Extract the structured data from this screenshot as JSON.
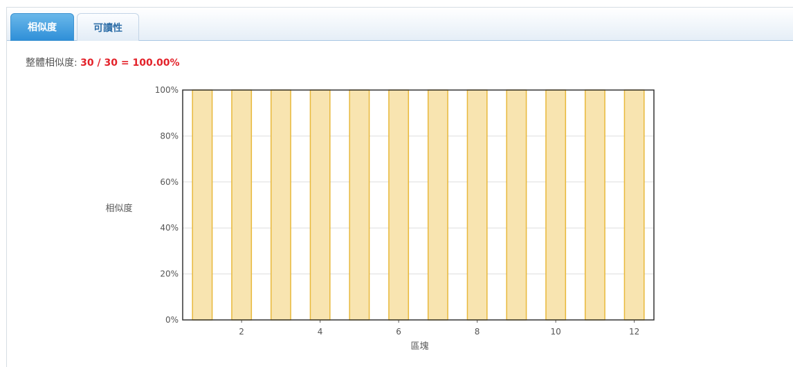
{
  "tabs": [
    {
      "label": "相似度",
      "active": true
    },
    {
      "label": "可讀性",
      "active": false
    }
  ],
  "summary": {
    "label": "整體相似度:",
    "value": "30 / 30 = 100.00%"
  },
  "colors": {
    "bar_fill": "#f8e4b0",
    "bar_stroke": "#e8b83a",
    "value_red": "#e3222a",
    "tab_active": "#3a9ae0"
  },
  "chart_data": {
    "type": "bar",
    "xlabel": "區塊",
    "ylabel": "相似度",
    "categories": [
      1,
      2,
      3,
      4,
      5,
      6,
      7,
      8,
      9,
      10,
      11,
      12
    ],
    "values": [
      100,
      100,
      100,
      100,
      100,
      100,
      100,
      100,
      100,
      100,
      100,
      100
    ],
    "ylim": [
      0,
      100
    ],
    "y_ticks": [
      "0%",
      "20%",
      "40%",
      "60%",
      "80%",
      "100%"
    ],
    "x_ticks": [
      "2",
      "4",
      "6",
      "8",
      "10",
      "12"
    ],
    "grid": true,
    "legend": false
  }
}
